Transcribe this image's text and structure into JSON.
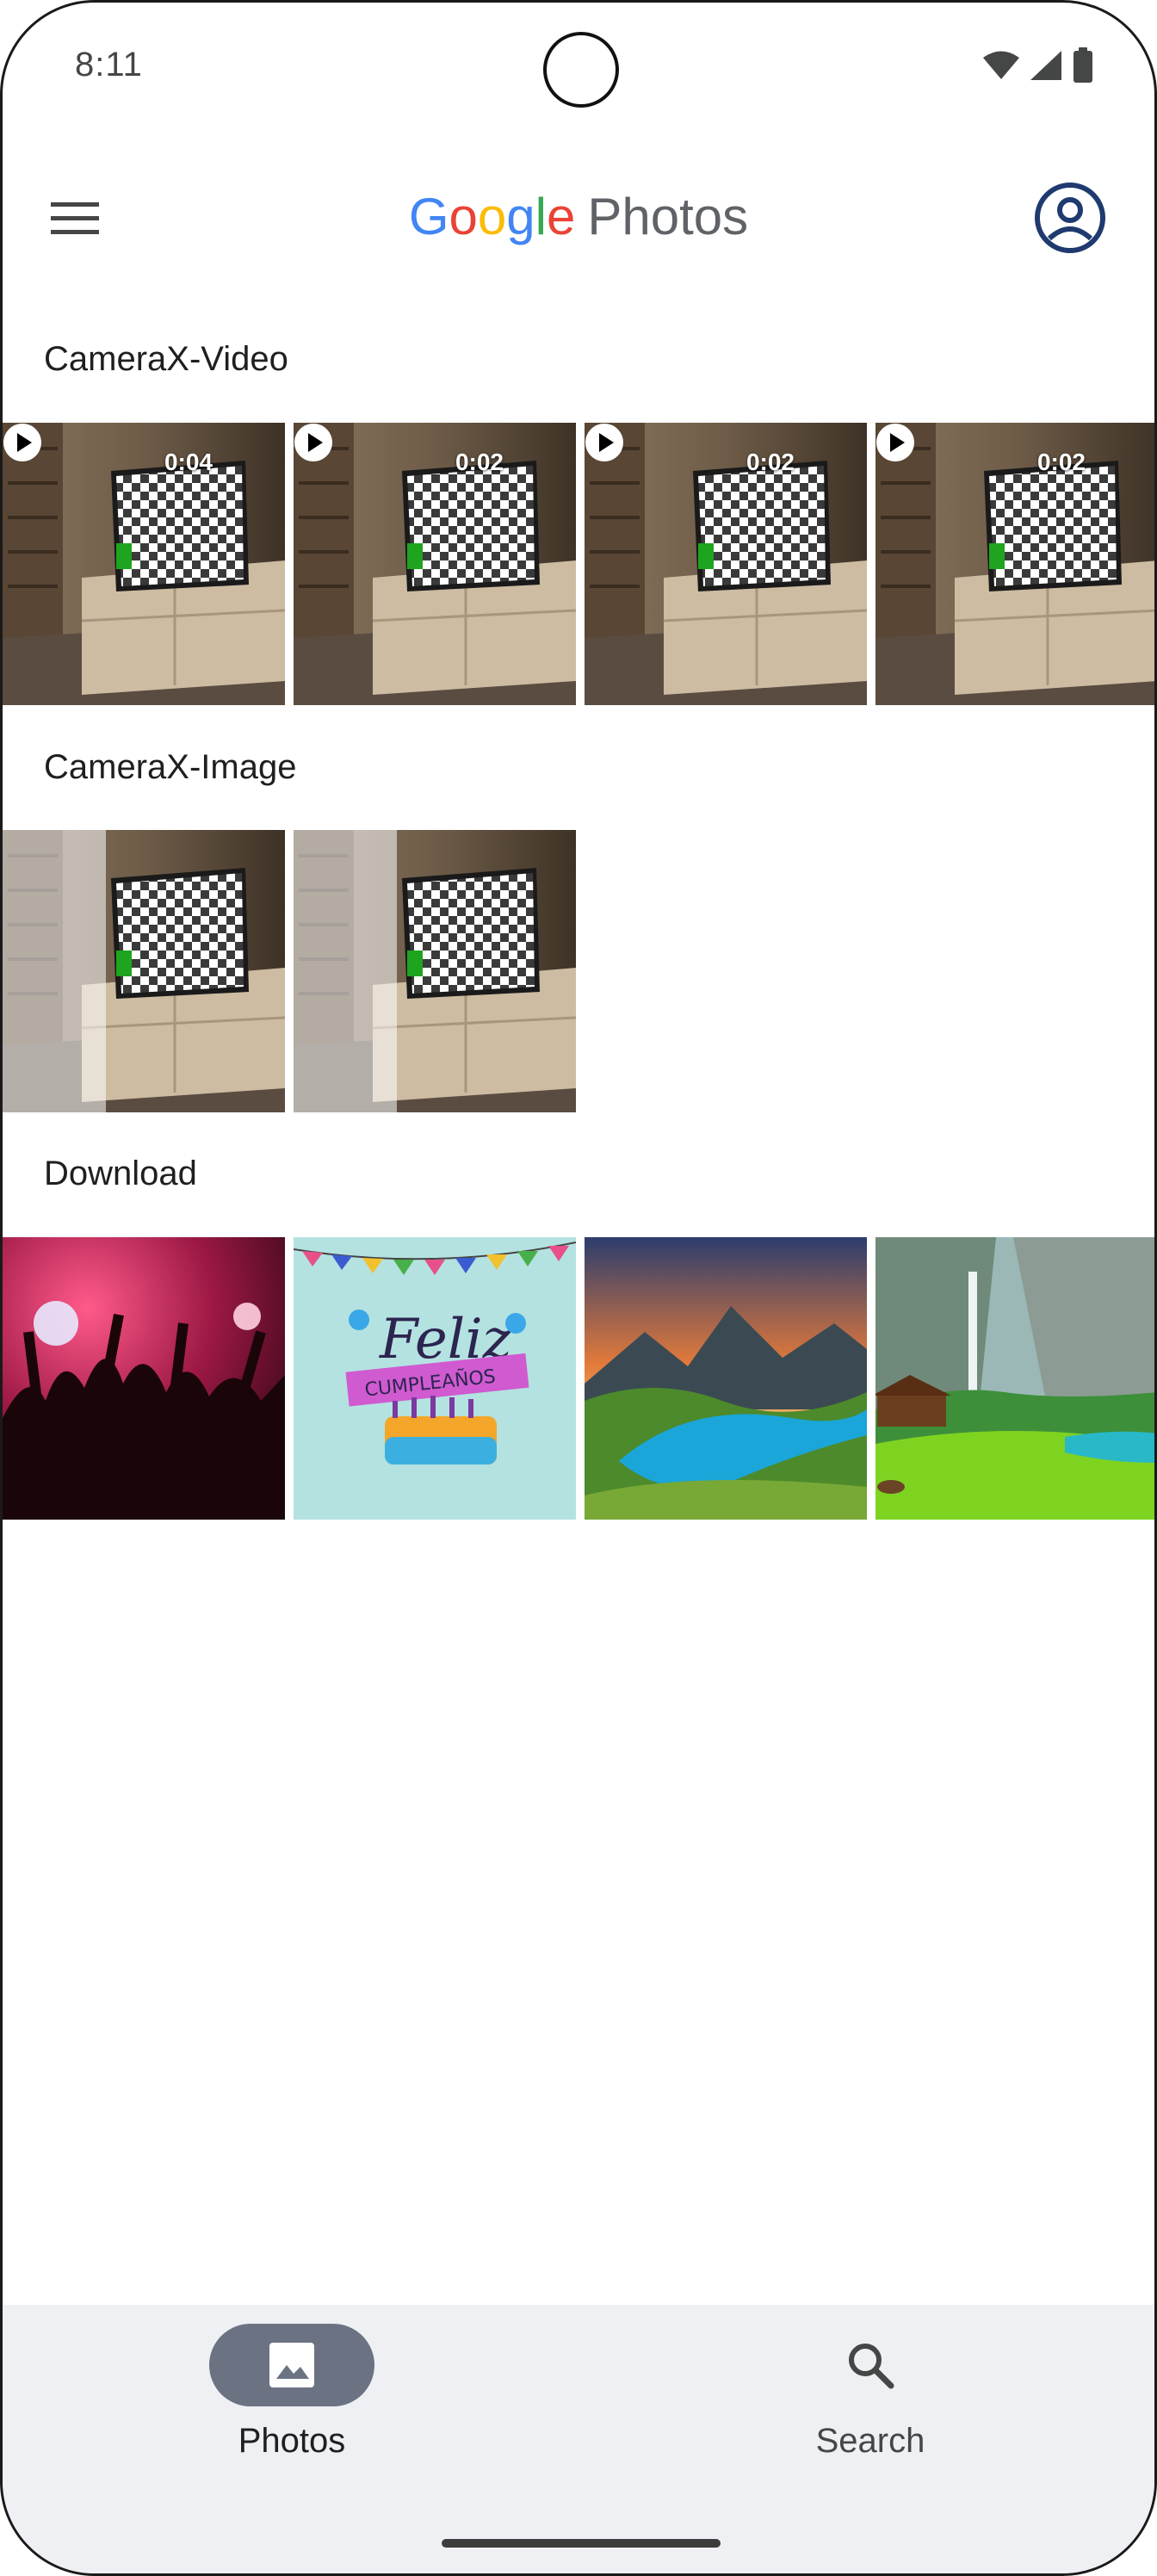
{
  "status_bar": {
    "time": "8:11",
    "icons": [
      "wifi-icon",
      "cellular-signal-icon",
      "battery-icon"
    ]
  },
  "app_bar": {
    "brand_letters": [
      "G",
      "o",
      "o",
      "g",
      "l",
      "e"
    ],
    "brand_product": "Photos",
    "menu_icon": "hamburger-menu-icon",
    "account_icon": "account-circle-icon"
  },
  "sections": [
    {
      "title": "CameraX-Video",
      "items": [
        {
          "type": "video",
          "duration": "0:04"
        },
        {
          "type": "video",
          "duration": "0:02"
        },
        {
          "type": "video",
          "duration": "0:02"
        },
        {
          "type": "video",
          "duration": "0:02"
        }
      ]
    },
    {
      "title": "CameraX-Image",
      "items": [
        {
          "type": "image"
        },
        {
          "type": "image"
        }
      ]
    },
    {
      "title": "Download",
      "items": [
        {
          "type": "image",
          "subject": "concert crowd"
        },
        {
          "type": "image",
          "subject": "birthday card",
          "text_line1": "Feliz",
          "text_line2": "CUMPLEAÑOS"
        },
        {
          "type": "image",
          "subject": "mountain lake sunset"
        },
        {
          "type": "image",
          "subject": "alpine waterfall meadow"
        }
      ]
    }
  ],
  "bottom_nav": {
    "items": [
      {
        "label": "Photos",
        "icon": "photo-icon",
        "selected": true
      },
      {
        "label": "Search",
        "icon": "search-icon",
        "selected": false
      }
    ]
  },
  "colors": {
    "google_blue": "#4285F4",
    "google_red": "#EA4335",
    "google_yellow": "#FBBC05",
    "google_green": "#34A853",
    "nav_background": "#eef0f4",
    "nav_selected_pill": "#6b7383"
  }
}
